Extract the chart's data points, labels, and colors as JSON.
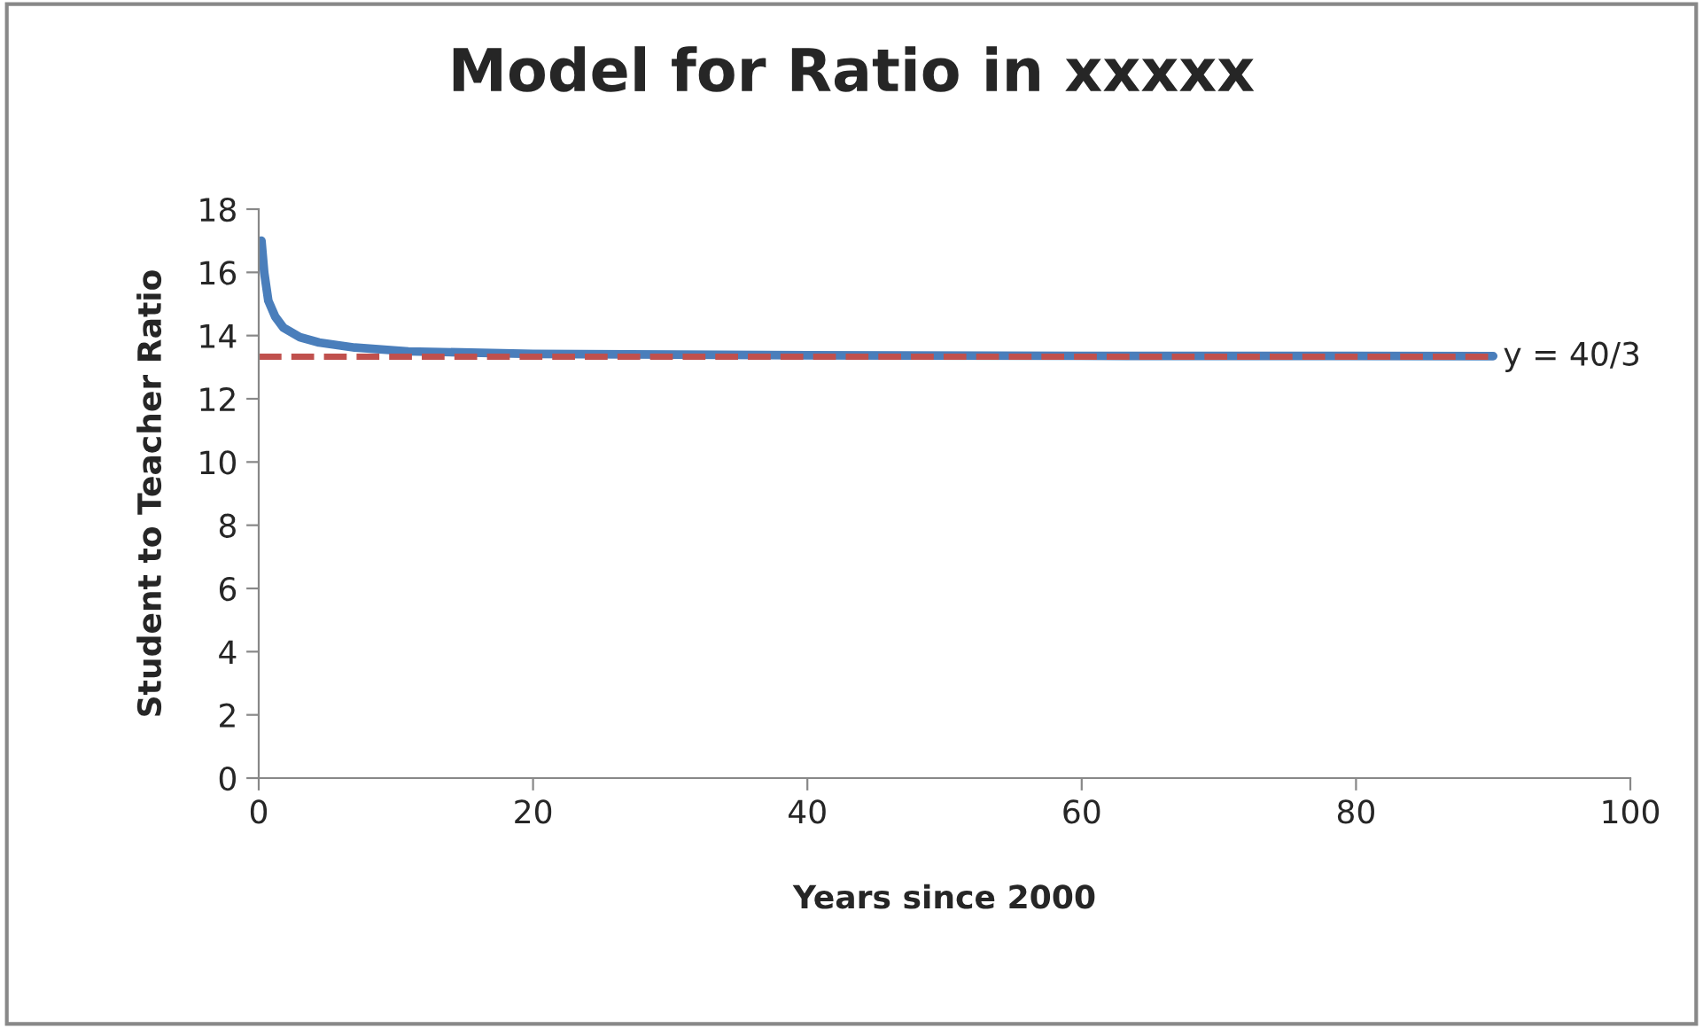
{
  "chart_data": {
    "type": "line",
    "title": "Model for Ratio in xxxxx",
    "xlabel": "Years since 2000",
    "ylabel": "Student to Teacher Ratio",
    "series": [
      {
        "color": "#4a7ebb",
        "x": [
          0.2,
          0.4,
          0.7,
          1.2,
          1.8,
          3,
          4.4,
          7,
          10.9,
          20,
          40,
          60,
          90
        ],
        "values": [
          17.0,
          16.0,
          15.1,
          14.6,
          14.25,
          13.95,
          13.78,
          13.62,
          13.5,
          13.42,
          13.38,
          13.36,
          13.35
        ]
      }
    ],
    "ref_lines": [
      {
        "axis": "y",
        "value": 13.333333333333334,
        "color": "#c0504d",
        "line_style": "dashed"
      }
    ],
    "annotations": [
      {
        "text": "y = 40/3",
        "x": 90,
        "y": 13.333333333333334
      }
    ],
    "xlim": [
      0,
      100
    ],
    "xticks": [
      0,
      20,
      40,
      60,
      80,
      100
    ],
    "ylim": [
      0,
      18
    ],
    "yticks": [
      0,
      2,
      4,
      6,
      8,
      10,
      12,
      14,
      16,
      18
    ],
    "grid": false,
    "legend": false,
    "marker": "none",
    "line_style": "solid"
  }
}
